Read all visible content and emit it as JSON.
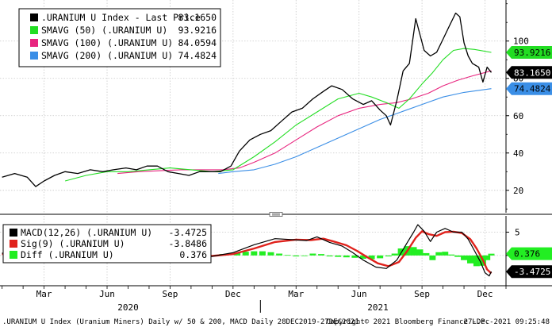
{
  "colors": {
    "background": "#ffffff",
    "grid": "#c8c8c8",
    "price": "#000000",
    "sma50": "#22dd22",
    "sma100": "#e8257f",
    "sma200": "#3a8ee6",
    "macd": "#000000",
    "signal": "#e0221c",
    "diff": "#22ee22"
  },
  "top_legend": [
    {
      "label": ".URANIUM U Index - Last Price",
      "value": "83.1650",
      "color": "#000000"
    },
    {
      "label": "SMAVG (50) (.URANIUM U)",
      "value": "93.9216",
      "color": "#22dd22"
    },
    {
      "label": "SMAVG (100) (.URANIUM U)",
      "value": "84.0594",
      "color": "#e8257f"
    },
    {
      "label": "SMAVG (200) (.URANIUM U)",
      "value": "74.4824",
      "color": "#3a8ee6"
    }
  ],
  "bottom_legend": [
    {
      "label": "MACD(12,26) (.URANIUM U)",
      "value": "-3.4725",
      "color": "#000000"
    },
    {
      "label": "Sig(9) (.URANIUM U)",
      "value": "-3.8486",
      "color": "#e0221c"
    },
    {
      "label": "Diff (.URANIUM U)",
      "value": "0.376",
      "color": "#22ee22"
    }
  ],
  "top_badges": [
    {
      "text": "93.9216",
      "value": 93.9216,
      "bg": "#22dd22",
      "fg": "#000000"
    },
    {
      "text": "83.1650",
      "value": 83.165,
      "bg": "#000000",
      "fg": "#ffffff"
    },
    {
      "text": "74.4824",
      "value": 74.4824,
      "bg": "#3a8ee6",
      "fg": "#000000"
    }
  ],
  "bottom_badges": [
    {
      "text": "0.376",
      "value": 0.376,
      "bg": "#22ee22",
      "fg": "#000000"
    },
    {
      "text": "-3.4725",
      "value": -3.4725,
      "bg": "#000000",
      "fg": "#ffffff"
    }
  ],
  "x_axis": {
    "month_ticks": [
      {
        "label": "Mar",
        "x": 2.0
      },
      {
        "label": "Jun",
        "x": 5.0
      },
      {
        "label": "Sep",
        "x": 8.0
      },
      {
        "label": "Dec",
        "x": 11.0
      },
      {
        "label": "Mar",
        "x": 14.0
      },
      {
        "label": "Jun",
        "x": 17.0
      },
      {
        "label": "Sep",
        "x": 20.0
      },
      {
        "label": "Dec",
        "x": 23.0
      }
    ],
    "years": [
      {
        "label": "2020",
        "x": 6.0
      },
      {
        "label": "2021",
        "x": 17.9
      }
    ],
    "year_divider": 12.0
  },
  "footer": {
    "left": ".URANIUM U Index (Uranium Miners) Daily w/ 50 & 200, MACD Daily 28DEC2019-27DEC2021",
    "copyright": "Copyright© 2021 Bloomberg Finance L.P.",
    "timestamp": "27-Dec-2021 09:25:48"
  },
  "chart_data": [
    {
      "type": "line",
      "x_unit": "months since 1 Jan 2020",
      "xlim": [
        -0.1,
        24.0
      ],
      "ylim": [
        8,
        122
      ],
      "yticks": [
        20,
        40,
        60,
        80,
        100
      ],
      "grid": true,
      "legend_position": "top-left",
      "series": [
        {
          "name": ".URANIUM U Index - Last Price",
          "color": "#000000",
          "points": [
            [
              0.0,
              27
            ],
            [
              0.6,
              29
            ],
            [
              1.2,
              27
            ],
            [
              1.6,
              22
            ],
            [
              2.0,
              25
            ],
            [
              2.5,
              28
            ],
            [
              3.0,
              30
            ],
            [
              3.6,
              29
            ],
            [
              4.2,
              31
            ],
            [
              4.8,
              30
            ],
            [
              5.3,
              31
            ],
            [
              5.9,
              32
            ],
            [
              6.4,
              31
            ],
            [
              6.9,
              33
            ],
            [
              7.4,
              33
            ],
            [
              7.9,
              30
            ],
            [
              8.4,
              29
            ],
            [
              8.9,
              28
            ],
            [
              9.4,
              30
            ],
            [
              9.9,
              30
            ],
            [
              10.4,
              30
            ],
            [
              10.9,
              33
            ],
            [
              11.3,
              41
            ],
            [
              11.8,
              47
            ],
            [
              12.3,
              50
            ],
            [
              12.8,
              52
            ],
            [
              13.3,
              57
            ],
            [
              13.8,
              62
            ],
            [
              14.3,
              64
            ],
            [
              14.8,
              69
            ],
            [
              15.3,
              73
            ],
            [
              15.7,
              76
            ],
            [
              16.2,
              74
            ],
            [
              16.7,
              69
            ],
            [
              17.2,
              66
            ],
            [
              17.6,
              68
            ],
            [
              18.0,
              63
            ],
            [
              18.3,
              60
            ],
            [
              18.5,
              55
            ],
            [
              18.8,
              68
            ],
            [
              19.1,
              84
            ],
            [
              19.4,
              88
            ],
            [
              19.7,
              112
            ],
            [
              20.1,
              95
            ],
            [
              20.4,
              92
            ],
            [
              20.7,
              94
            ],
            [
              21.0,
              101
            ],
            [
              21.3,
              108
            ],
            [
              21.6,
              115
            ],
            [
              21.8,
              113
            ],
            [
              22.0,
              99
            ],
            [
              22.2,
              92
            ],
            [
              22.4,
              88
            ],
            [
              22.7,
              86
            ],
            [
              22.9,
              78
            ],
            [
              23.1,
              86
            ],
            [
              23.3,
              83.165
            ]
          ]
        },
        {
          "name": "SMAVG (50) (.URANIUM U)",
          "color": "#22dd22",
          "points": [
            [
              3.0,
              25
            ],
            [
              4.0,
              28
            ],
            [
              5.0,
              30
            ],
            [
              6.0,
              30
            ],
            [
              7.0,
              31
            ],
            [
              8.0,
              32
            ],
            [
              9.0,
              31
            ],
            [
              10.0,
              30
            ],
            [
              11.0,
              31
            ],
            [
              12.0,
              38
            ],
            [
              13.0,
              46
            ],
            [
              14.0,
              55
            ],
            [
              15.0,
              62
            ],
            [
              16.0,
              69
            ],
            [
              17.0,
              72
            ],
            [
              17.6,
              70
            ],
            [
              18.3,
              67
            ],
            [
              18.9,
              64
            ],
            [
              19.4,
              69
            ],
            [
              20.0,
              77
            ],
            [
              20.5,
              83
            ],
            [
              21.0,
              90
            ],
            [
              21.5,
              95
            ],
            [
              22.0,
              96
            ],
            [
              22.5,
              95.5
            ],
            [
              23.3,
              93.9216
            ]
          ]
        },
        {
          "name": "SMAVG (100) (.URANIUM U)",
          "color": "#e8257f",
          "points": [
            [
              5.5,
              29
            ],
            [
              6.5,
              30
            ],
            [
              7.5,
              30.5
            ],
            [
              8.5,
              31
            ],
            [
              9.5,
              31
            ],
            [
              10.5,
              31
            ],
            [
              11.3,
              32
            ],
            [
              12.0,
              35
            ],
            [
              13.0,
              40
            ],
            [
              14.0,
              47
            ],
            [
              15.0,
              54
            ],
            [
              16.0,
              60
            ],
            [
              17.0,
              64
            ],
            [
              18.0,
              66
            ],
            [
              18.8,
              67
            ],
            [
              19.5,
              69
            ],
            [
              20.3,
              72
            ],
            [
              21.0,
              76
            ],
            [
              21.7,
              79
            ],
            [
              22.3,
              81
            ],
            [
              23.3,
              84.0594
            ]
          ]
        },
        {
          "name": "SMAVG (200) (.URANIUM U)",
          "color": "#3a8ee6",
          "points": [
            [
              10.3,
              29
            ],
            [
              11.0,
              30
            ],
            [
              12.0,
              31
            ],
            [
              13.0,
              34
            ],
            [
              14.0,
              38
            ],
            [
              15.0,
              43
            ],
            [
              16.0,
              48
            ],
            [
              17.0,
              53
            ],
            [
              18.0,
              58
            ],
            [
              19.0,
              62
            ],
            [
              20.0,
              66
            ],
            [
              21.0,
              70
            ],
            [
              22.0,
              72.5
            ],
            [
              23.3,
              74.4824
            ]
          ]
        }
      ]
    },
    {
      "type": "line",
      "x_unit": "months since 1 Jan 2020",
      "xlim": [
        -0.1,
        24.0
      ],
      "ylim": [
        -6.5,
        8.5
      ],
      "yticks": [
        0,
        5
      ],
      "grid": true,
      "legend_position": "top-left",
      "series": [
        {
          "name": "MACD(12,26) (.URANIUM U)",
          "color": "#000000",
          "points": [
            [
              0.0,
              0.5
            ],
            [
              1.0,
              0.0
            ],
            [
              2.0,
              -0.7
            ],
            [
              3.0,
              0.5
            ],
            [
              4.0,
              0.7
            ],
            [
              5.0,
              0.4
            ],
            [
              6.0,
              1.0
            ],
            [
              7.0,
              1.3
            ],
            [
              8.0,
              0.6
            ],
            [
              9.0,
              -0.3
            ],
            [
              10.0,
              -0.2
            ],
            [
              11.0,
              0.6
            ],
            [
              12.0,
              2.3
            ],
            [
              13.0,
              3.6
            ],
            [
              13.8,
              3.4
            ],
            [
              14.5,
              3.2
            ],
            [
              15.0,
              4.0
            ],
            [
              15.6,
              2.8
            ],
            [
              16.2,
              2.0
            ],
            [
              16.7,
              0.6
            ],
            [
              17.2,
              -1.0
            ],
            [
              17.8,
              -2.5
            ],
            [
              18.3,
              -2.8
            ],
            [
              18.8,
              -1.0
            ],
            [
              19.3,
              2.8
            ],
            [
              19.6,
              5.0
            ],
            [
              19.8,
              6.6
            ],
            [
              20.1,
              5.2
            ],
            [
              20.4,
              3.0
            ],
            [
              20.7,
              5.0
            ],
            [
              21.1,
              5.8
            ],
            [
              21.5,
              5.0
            ],
            [
              21.9,
              5.0
            ],
            [
              22.2,
              3.5
            ],
            [
              22.5,
              1.0
            ],
            [
              22.8,
              -1.5
            ],
            [
              23.0,
              -3.7
            ],
            [
              23.2,
              -4.4
            ],
            [
              23.3,
              -3.4725
            ]
          ]
        },
        {
          "name": "Sig(9) (.URANIUM U)",
          "color": "#e0221c",
          "points": [
            [
              0.0,
              0.3
            ],
            [
              1.0,
              0.2
            ],
            [
              2.0,
              -0.3
            ],
            [
              3.0,
              0.2
            ],
            [
              4.0,
              0.6
            ],
            [
              5.0,
              0.5
            ],
            [
              6.0,
              0.8
            ],
            [
              7.0,
              1.1
            ],
            [
              8.0,
              0.8
            ],
            [
              9.0,
              0.1
            ],
            [
              10.0,
              -0.1
            ],
            [
              11.0,
              0.3
            ],
            [
              12.0,
              1.5
            ],
            [
              13.0,
              2.9
            ],
            [
              14.0,
              3.4
            ],
            [
              14.7,
              3.3
            ],
            [
              15.3,
              3.6
            ],
            [
              15.8,
              3.0
            ],
            [
              16.4,
              2.2
            ],
            [
              16.9,
              1.0
            ],
            [
              17.4,
              -0.4
            ],
            [
              17.9,
              -1.7
            ],
            [
              18.4,
              -2.3
            ],
            [
              18.9,
              -1.4
            ],
            [
              19.3,
              1.0
            ],
            [
              19.7,
              3.8
            ],
            [
              20.0,
              5.2
            ],
            [
              20.3,
              4.6
            ],
            [
              20.7,
              4.2
            ],
            [
              21.1,
              5.0
            ],
            [
              21.5,
              5.1
            ],
            [
              21.9,
              4.8
            ],
            [
              22.3,
              3.5
            ],
            [
              22.6,
              1.5
            ],
            [
              22.9,
              -1.0
            ],
            [
              23.1,
              -3.0
            ],
            [
              23.3,
              -3.8486
            ]
          ]
        }
      ],
      "bars": {
        "name": "Diff (.URANIUM U)",
        "color": "#22ee22",
        "points": [
          [
            0.5,
            0.2
          ],
          [
            1.5,
            -0.3
          ],
          [
            2.5,
            0.3
          ],
          [
            3.5,
            0.1
          ],
          [
            4.5,
            -0.1
          ],
          [
            5.5,
            0.2
          ],
          [
            6.5,
            0.3
          ],
          [
            7.5,
            -0.2
          ],
          [
            8.5,
            -0.4
          ],
          [
            9.5,
            -0.1
          ],
          [
            10.5,
            0.3
          ],
          [
            11.2,
            0.6
          ],
          [
            11.6,
            0.8
          ],
          [
            12.0,
            0.9
          ],
          [
            12.4,
            0.9
          ],
          [
            12.8,
            0.7
          ],
          [
            13.2,
            0.4
          ],
          [
            13.6,
            0.1
          ],
          [
            14.0,
            -0.2
          ],
          [
            14.4,
            -0.1
          ],
          [
            14.8,
            0.4
          ],
          [
            15.2,
            0.3
          ],
          [
            15.6,
            -0.2
          ],
          [
            16.0,
            -0.3
          ],
          [
            16.4,
            -0.4
          ],
          [
            16.8,
            -0.5
          ],
          [
            17.2,
            -0.7
          ],
          [
            17.6,
            -0.8
          ],
          [
            18.0,
            -0.6
          ],
          [
            18.4,
            -0.2
          ],
          [
            18.7,
            0.4
          ],
          [
            19.0,
            1.5
          ],
          [
            19.3,
            2.0
          ],
          [
            19.6,
            1.8
          ],
          [
            19.9,
            1.3
          ],
          [
            20.2,
            0.5
          ],
          [
            20.5,
            -1.0
          ],
          [
            20.8,
            0.7
          ],
          [
            21.1,
            0.8
          ],
          [
            21.4,
            0.2
          ],
          [
            21.7,
            -0.3
          ],
          [
            22.0,
            -1.0
          ],
          [
            22.3,
            -1.7
          ],
          [
            22.6,
            -2.3
          ],
          [
            22.9,
            -2.2
          ],
          [
            23.1,
            -1.0
          ],
          [
            23.3,
            0.376
          ]
        ]
      }
    }
  ]
}
